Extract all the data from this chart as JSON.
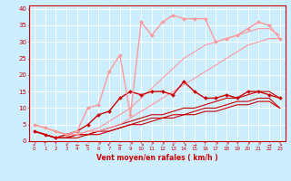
{
  "xlabel": "Vent moyen/en rafales ( km/h )",
  "bg_color": "#cceeff",
  "grid_color": "#ffffff",
  "xlim": [
    -0.5,
    23.5
  ],
  "ylim": [
    0,
    41
  ],
  "xticks": [
    0,
    1,
    2,
    3,
    4,
    5,
    6,
    7,
    8,
    9,
    10,
    11,
    12,
    13,
    14,
    15,
    16,
    17,
    18,
    19,
    20,
    21,
    22,
    23
  ],
  "yticks": [
    0,
    5,
    10,
    15,
    20,
    25,
    30,
    35,
    40
  ],
  "series": [
    {
      "x": [
        0,
        1,
        2,
        3,
        4,
        5,
        6,
        7,
        8,
        9,
        10,
        11,
        12,
        13,
        14,
        15,
        16,
        17,
        18,
        19,
        20,
        21,
        22,
        23
      ],
      "y": [
        3,
        2,
        1,
        2,
        3,
        5,
        8,
        9,
        13,
        15,
        14,
        15,
        15,
        14,
        18,
        15,
        13,
        13,
        14,
        13,
        15,
        15,
        14,
        13
      ],
      "color": "#cc0000",
      "marker": "D",
      "markersize": 2.0,
      "linewidth": 1.0,
      "zorder": 5
    },
    {
      "x": [
        0,
        1,
        2,
        3,
        4,
        5,
        6,
        7,
        8,
        9,
        10,
        11,
        12,
        13,
        14,
        15,
        16,
        17,
        18,
        19,
        20,
        21,
        22,
        23
      ],
      "y": [
        3,
        2,
        1,
        1,
        2,
        2,
        3,
        4,
        5,
        6,
        7,
        8,
        8,
        9,
        10,
        10,
        11,
        12,
        13,
        13,
        14,
        15,
        15,
        13
      ],
      "color": "#cc0000",
      "marker": null,
      "markersize": 0,
      "linewidth": 0.8,
      "zorder": 4
    },
    {
      "x": [
        0,
        1,
        2,
        3,
        4,
        5,
        6,
        7,
        8,
        9,
        10,
        11,
        12,
        13,
        14,
        15,
        16,
        17,
        18,
        19,
        20,
        21,
        22,
        23
      ],
      "y": [
        3,
        2,
        1,
        1,
        2,
        2,
        3,
        3,
        4,
        5,
        6,
        7,
        7,
        8,
        8,
        9,
        10,
        10,
        11,
        12,
        12,
        13,
        13,
        10
      ],
      "color": "#cc0000",
      "marker": null,
      "markersize": 0,
      "linewidth": 0.8,
      "zorder": 4
    },
    {
      "x": [
        0,
        1,
        2,
        3,
        4,
        5,
        6,
        7,
        8,
        9,
        10,
        11,
        12,
        13,
        14,
        15,
        16,
        17,
        18,
        19,
        20,
        21,
        22,
        23
      ],
      "y": [
        3,
        2,
        1,
        1,
        1,
        2,
        2,
        3,
        4,
        5,
        5,
        6,
        7,
        7,
        8,
        8,
        9,
        9,
        10,
        11,
        11,
        12,
        12,
        10
      ],
      "color": "#cc0000",
      "marker": null,
      "markersize": 0,
      "linewidth": 0.8,
      "zorder": 4
    },
    {
      "x": [
        0,
        1,
        2,
        3,
        4,
        5,
        6,
        7,
        8,
        9,
        10,
        11,
        12,
        13,
        14,
        15,
        16,
        17,
        18,
        19,
        20,
        21,
        22,
        23
      ],
      "y": [
        5,
        4,
        3,
        2,
        3,
        10,
        11,
        21,
        26,
        8,
        36,
        32,
        36,
        38,
        37,
        37,
        37,
        30,
        31,
        32,
        34,
        36,
        35,
        31
      ],
      "color": "#ff9999",
      "marker": "D",
      "markersize": 2.0,
      "linewidth": 1.0,
      "zorder": 5
    },
    {
      "x": [
        0,
        1,
        2,
        3,
        4,
        5,
        6,
        7,
        8,
        9,
        10,
        11,
        12,
        13,
        14,
        15,
        16,
        17,
        18,
        19,
        20,
        21,
        22,
        23
      ],
      "y": [
        5,
        4,
        3,
        2,
        2,
        3,
        4,
        6,
        8,
        10,
        13,
        16,
        19,
        22,
        25,
        27,
        29,
        30,
        31,
        32,
        33,
        34,
        34,
        32
      ],
      "color": "#ff9999",
      "marker": null,
      "markersize": 0,
      "linewidth": 0.8,
      "zorder": 4
    },
    {
      "x": [
        0,
        1,
        2,
        3,
        4,
        5,
        6,
        7,
        8,
        9,
        10,
        11,
        12,
        13,
        14,
        15,
        16,
        17,
        18,
        19,
        20,
        21,
        22,
        23
      ],
      "y": [
        5,
        4,
        3,
        2,
        2,
        3,
        3,
        4,
        5,
        7,
        9,
        11,
        13,
        15,
        17,
        19,
        21,
        23,
        25,
        27,
        29,
        30,
        31,
        31
      ],
      "color": "#ff9999",
      "marker": null,
      "markersize": 0,
      "linewidth": 0.8,
      "zorder": 4
    }
  ],
  "arrows": [
    "↙",
    "↑",
    "↑",
    "↙",
    "←",
    "←",
    "↗",
    "↙",
    "←",
    "↗",
    "↘",
    "↗",
    "↗",
    "↙",
    "↘",
    "→",
    "↑",
    "↗",
    "↗",
    "↑",
    "↗",
    "↗",
    "→",
    "↘"
  ]
}
